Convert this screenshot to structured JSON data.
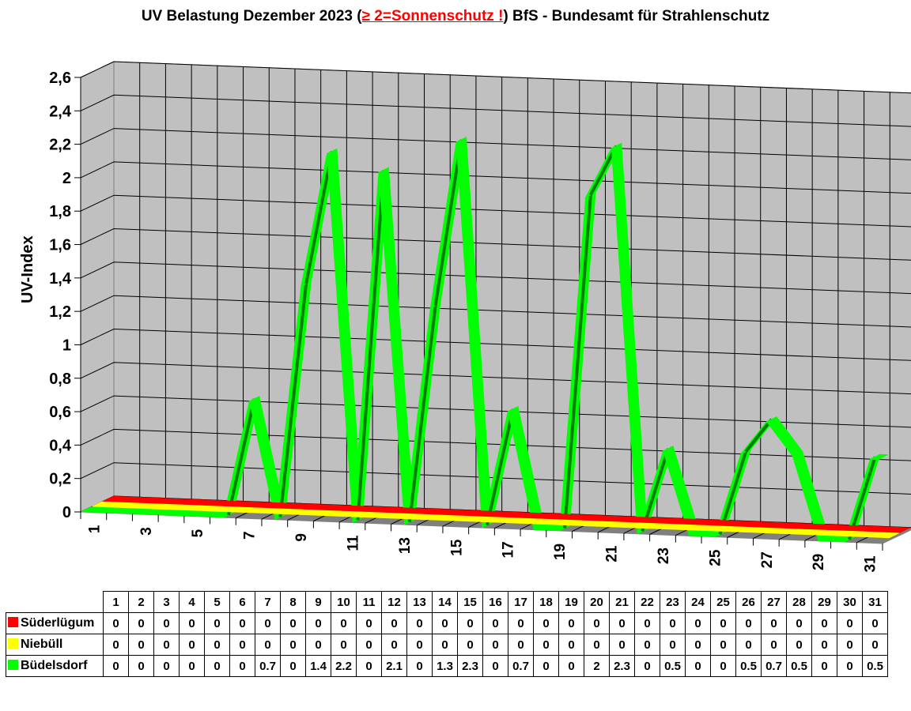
{
  "title": {
    "prefix": "UV Belastung Dezember 2023 (",
    "warning": "≥ 2=Sonnenschutz !",
    "suffix": ") BfS - Bundesamt für Strahlenschutz",
    "warning_color": "#ff0000"
  },
  "chart_data": {
    "type": "line",
    "style": "3d-ribbon",
    "title": "UV Belastung Dezember 2023 (≥ 2=Sonnenschutz !) BfS - Bundesamt für Strahlenschutz",
    "xlabel": "",
    "ylabel": "UV-Index",
    "ylim": [
      0,
      2.6
    ],
    "yticks": [
      "0",
      "0,2",
      "0,4",
      "0,6",
      "0,8",
      "1",
      "1,2",
      "1,4",
      "1,6",
      "1,8",
      "2",
      "2,2",
      "2,4",
      "2,6"
    ],
    "xtick_labels": [
      "1",
      "3",
      "5",
      "7",
      "9",
      "11",
      "13",
      "15",
      "17",
      "19",
      "21",
      "23",
      "25",
      "27",
      "29",
      "31"
    ],
    "grid": true,
    "x": [
      1,
      2,
      3,
      4,
      5,
      6,
      7,
      8,
      9,
      10,
      11,
      12,
      13,
      14,
      15,
      16,
      17,
      18,
      19,
      20,
      21,
      22,
      23,
      24,
      25,
      26,
      27,
      28,
      29,
      30,
      31
    ],
    "series": [
      {
        "name": "Süderlügum",
        "color": "#ff0000",
        "values": [
          0,
          0,
          0,
          0,
          0,
          0,
          0,
          0,
          0,
          0,
          0,
          0,
          0,
          0,
          0,
          0,
          0,
          0,
          0,
          0,
          0,
          0,
          0,
          0,
          0,
          0,
          0,
          0,
          0,
          0,
          0
        ]
      },
      {
        "name": "Niebüll",
        "color": "#ffff00",
        "values": [
          0,
          0,
          0,
          0,
          0,
          0,
          0,
          0,
          0,
          0,
          0,
          0,
          0,
          0,
          0,
          0,
          0,
          0,
          0,
          0,
          0,
          0,
          0,
          0,
          0,
          0,
          0,
          0,
          0,
          0,
          0
        ]
      },
      {
        "name": "Büdelsdorf",
        "color": "#00ff00",
        "values": [
          0,
          0,
          0,
          0,
          0,
          0,
          0.7,
          0,
          1.4,
          2.2,
          0,
          2.1,
          0,
          1.3,
          2.3,
          0,
          0.7,
          0,
          0,
          2,
          2.3,
          0,
          0.5,
          0,
          0,
          0.5,
          0.7,
          0.5,
          0,
          0,
          0.5
        ]
      }
    ]
  },
  "table": {
    "days": [
      "1",
      "2",
      "3",
      "4",
      "5",
      "6",
      "7",
      "8",
      "9",
      "10",
      "11",
      "12",
      "13",
      "14",
      "15",
      "16",
      "17",
      "18",
      "19",
      "20",
      "21",
      "22",
      "23",
      "24",
      "25",
      "26",
      "27",
      "28",
      "29",
      "30",
      "31"
    ],
    "rows": [
      {
        "name": "Süderlügum",
        "color": "#ff0000",
        "cells": [
          "0",
          "0",
          "0",
          "0",
          "0",
          "0",
          "0",
          "0",
          "0",
          "0",
          "0",
          "0",
          "0",
          "0",
          "0",
          "0",
          "0",
          "0",
          "0",
          "0",
          "0",
          "0",
          "0",
          "0",
          "0",
          "0",
          "0",
          "0",
          "0",
          "0",
          "0"
        ]
      },
      {
        "name": "Niebüll",
        "color": "#ffff00",
        "cells": [
          "0",
          "0",
          "0",
          "0",
          "0",
          "0",
          "0",
          "0",
          "0",
          "0",
          "0",
          "0",
          "0",
          "0",
          "0",
          "0",
          "0",
          "0",
          "0",
          "0",
          "0",
          "0",
          "0",
          "0",
          "0",
          "0",
          "0",
          "0",
          "0",
          "0",
          "0"
        ]
      },
      {
        "name": "Büdelsdorf",
        "color": "#00ff00",
        "cells": [
          "0",
          "0",
          "0",
          "0",
          "0",
          "0",
          "0.7",
          "0",
          "1.4",
          "2.2",
          "0",
          "2.1",
          "0",
          "1.3",
          "2.3",
          "0",
          "0.7",
          "0",
          "0",
          "2",
          "2.3",
          "0",
          "0.5",
          "0",
          "0",
          "0.5",
          "0.7",
          "0.5",
          "0",
          "0",
          "0.5"
        ]
      }
    ]
  }
}
